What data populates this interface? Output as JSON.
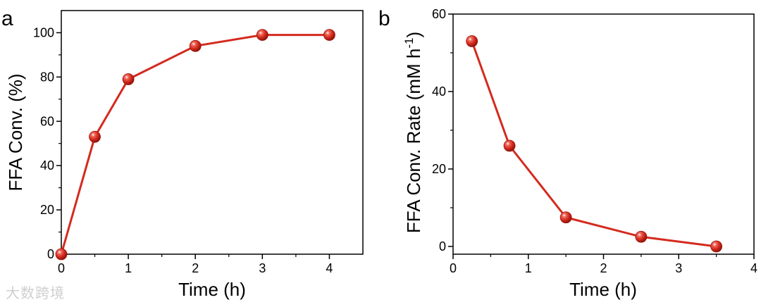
{
  "chart_data": [
    {
      "type": "line",
      "panel": "a",
      "title": "",
      "xlabel": "Time (h)",
      "ylabel": "FFA Conv. (%)",
      "xlim": [
        0,
        4.5
      ],
      "ylim": [
        0,
        110
      ],
      "xticks": [
        0,
        1,
        2,
        3,
        4
      ],
      "yticks": [
        0,
        20,
        40,
        60,
        80,
        100
      ],
      "series": [
        {
          "name": "FFA Conv.",
          "color": "#d42a1e",
          "x": [
            0,
            0.5,
            1,
            2,
            3,
            4
          ],
          "y": [
            0,
            53,
            79,
            94,
            99,
            99
          ]
        }
      ]
    },
    {
      "type": "line",
      "panel": "b",
      "title": "",
      "xlabel": "Time (h)",
      "ylabel": "FFA Conv. Rate (mM h",
      "ylabel_sup": "-1",
      "ylabel_end": ")",
      "xlim": [
        0,
        4
      ],
      "ylim": [
        -2,
        60
      ],
      "xticks": [
        0,
        1,
        2,
        3,
        4
      ],
      "yticks": [
        0,
        20,
        40,
        60
      ],
      "series": [
        {
          "name": "FFA Conv. Rate",
          "color": "#d42a1e",
          "x": [
            0.25,
            0.75,
            1.5,
            2.5,
            3.5
          ],
          "y": [
            53,
            26,
            7.5,
            2.5,
            0
          ]
        }
      ]
    }
  ],
  "watermark": "大数跨境"
}
